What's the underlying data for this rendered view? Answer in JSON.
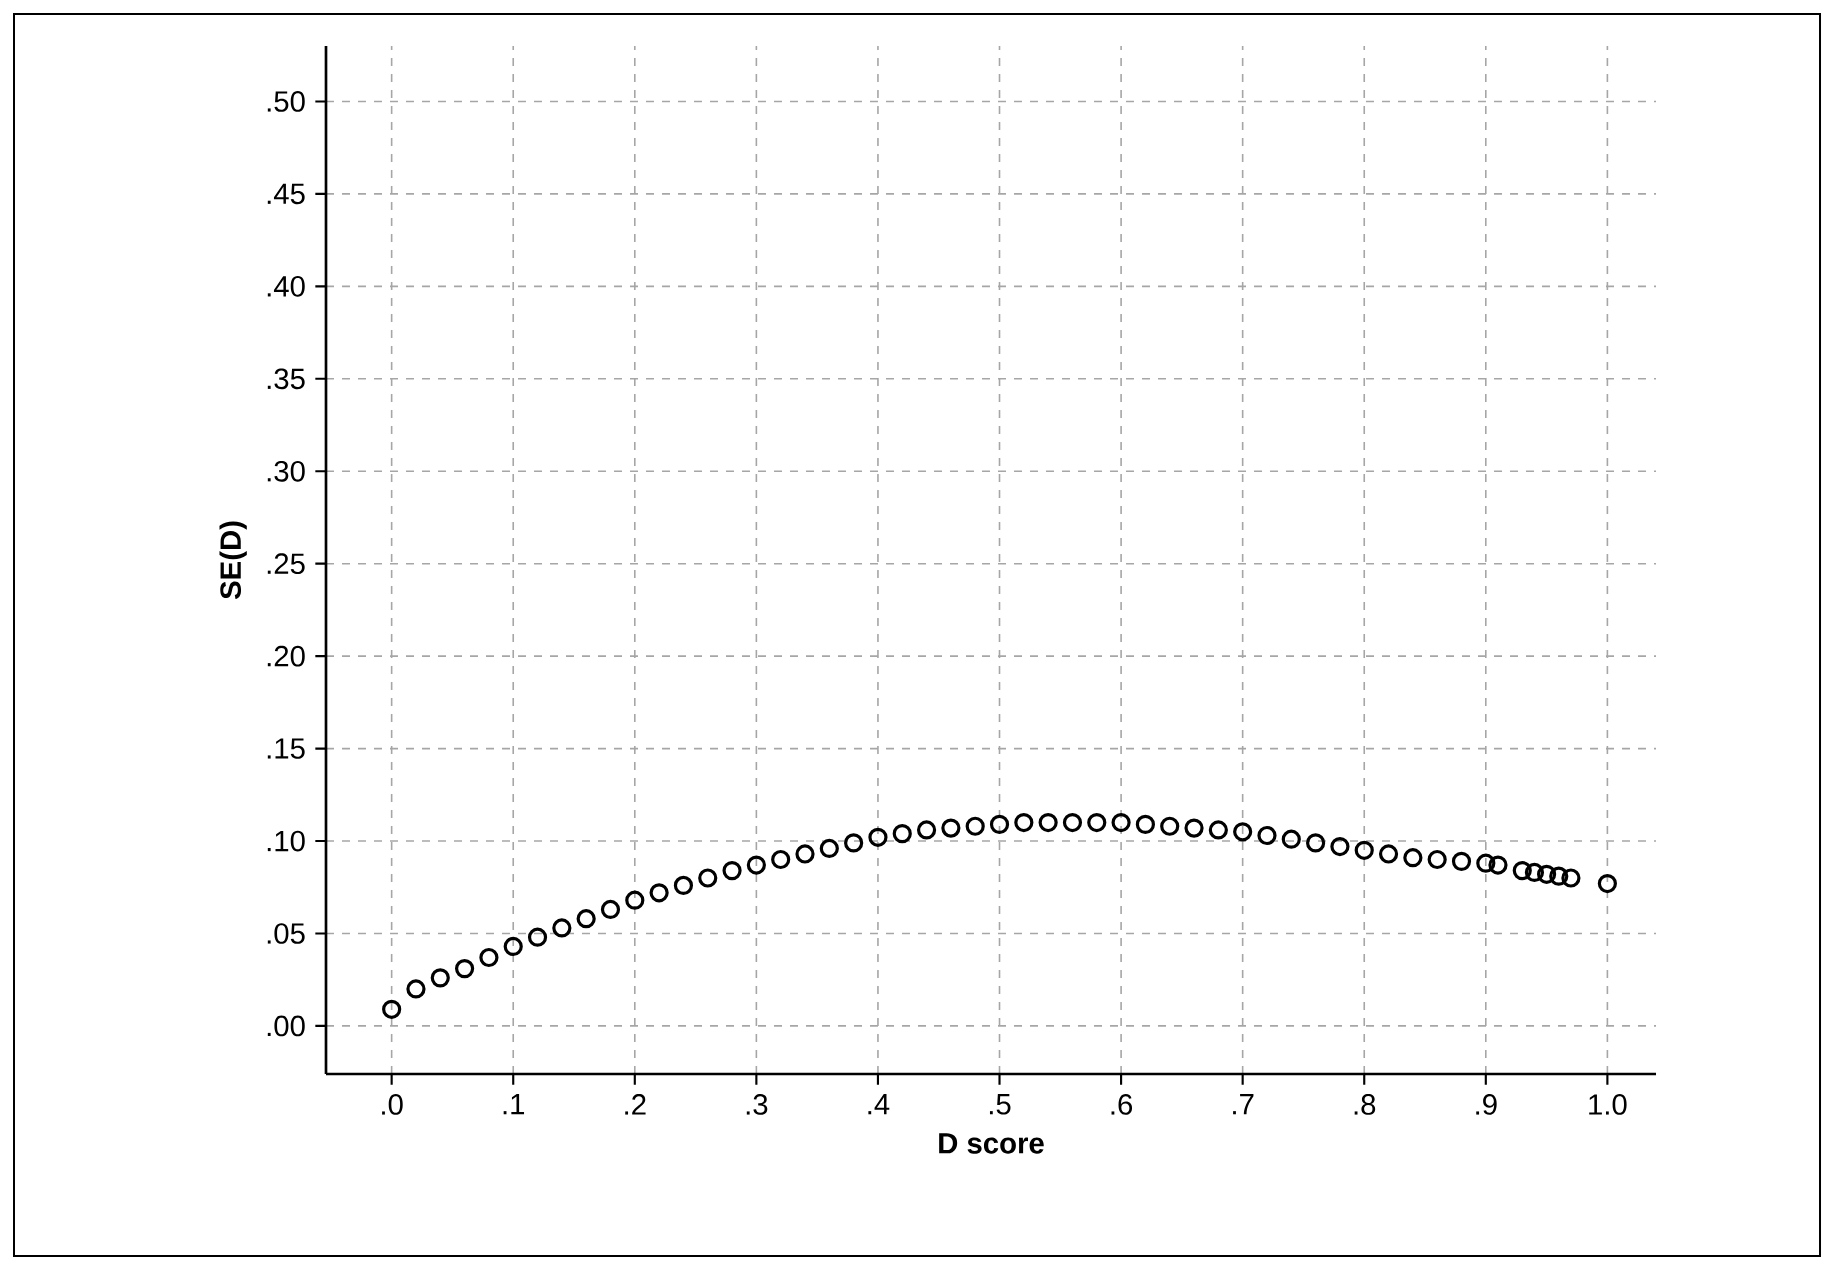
{
  "chart_data": {
    "type": "scatter",
    "xlabel": "D score",
    "ylabel": "SE(D)",
    "x": [
      0,
      0.02,
      0.04,
      0.06,
      0.08,
      0.1,
      0.12,
      0.14,
      0.16,
      0.18,
      0.2,
      0.22,
      0.24,
      0.26,
      0.28,
      0.3,
      0.32,
      0.34,
      0.36,
      0.38,
      0.4,
      0.42,
      0.44,
      0.46,
      0.48,
      0.5,
      0.52,
      0.54,
      0.56,
      0.58,
      0.6,
      0.62,
      0.64,
      0.66,
      0.68,
      0.7,
      0.72,
      0.74,
      0.76,
      0.78,
      0.8,
      0.82,
      0.84,
      0.86,
      0.88,
      0.9,
      0.91,
      0.93,
      0.94,
      0.95,
      0.96,
      0.97,
      1.0
    ],
    "values": [
      0.009,
      0.02,
      0.026,
      0.031,
      0.037,
      0.043,
      0.048,
      0.053,
      0.058,
      0.063,
      0.068,
      0.072,
      0.076,
      0.08,
      0.084,
      0.087,
      0.09,
      0.093,
      0.096,
      0.099,
      0.102,
      0.104,
      0.106,
      0.107,
      0.108,
      0.109,
      0.11,
      0.11,
      0.11,
      0.11,
      0.11,
      0.109,
      0.108,
      0.107,
      0.106,
      0.105,
      0.103,
      0.101,
      0.099,
      0.097,
      0.095,
      0.093,
      0.091,
      0.09,
      0.089,
      0.088,
      0.087,
      0.084,
      0.083,
      0.082,
      0.081,
      0.08,
      0.077
    ],
    "color": "#000000",
    "marker": "circle",
    "grid": true,
    "xlim": [
      -0.054,
      1.04
    ],
    "ylim": [
      -0.026,
      0.53
    ],
    "xticks": [
      {
        "value": 0,
        "label": ".0"
      },
      {
        "value": 0.1,
        "label": ".1"
      },
      {
        "value": 0.2,
        "label": ".2"
      },
      {
        "value": 0.3,
        "label": ".3"
      },
      {
        "value": 0.4,
        "label": ".4"
      },
      {
        "value": 0.5,
        "label": ".5"
      },
      {
        "value": 0.6,
        "label": ".6"
      },
      {
        "value": 0.7,
        "label": ".7"
      },
      {
        "value": 0.8,
        "label": ".8"
      },
      {
        "value": 0.9,
        "label": ".9"
      },
      {
        "value": 1.0,
        "label": "1.0"
      }
    ],
    "yticks": [
      {
        "value": 0,
        "label": ".00"
      },
      {
        "value": 0.05,
        "label": ".05"
      },
      {
        "value": 0.1,
        "label": ".10"
      },
      {
        "value": 0.15,
        "label": ".15"
      },
      {
        "value": 0.2,
        "label": ".20"
      },
      {
        "value": 0.25,
        "label": ".25"
      },
      {
        "value": 0.3,
        "label": ".30"
      },
      {
        "value": 0.35,
        "label": ".35"
      },
      {
        "value": 0.4,
        "label": ".40"
      },
      {
        "value": 0.45,
        "label": ".45"
      },
      {
        "value": 0.5,
        "label": ".50"
      }
    ]
  }
}
